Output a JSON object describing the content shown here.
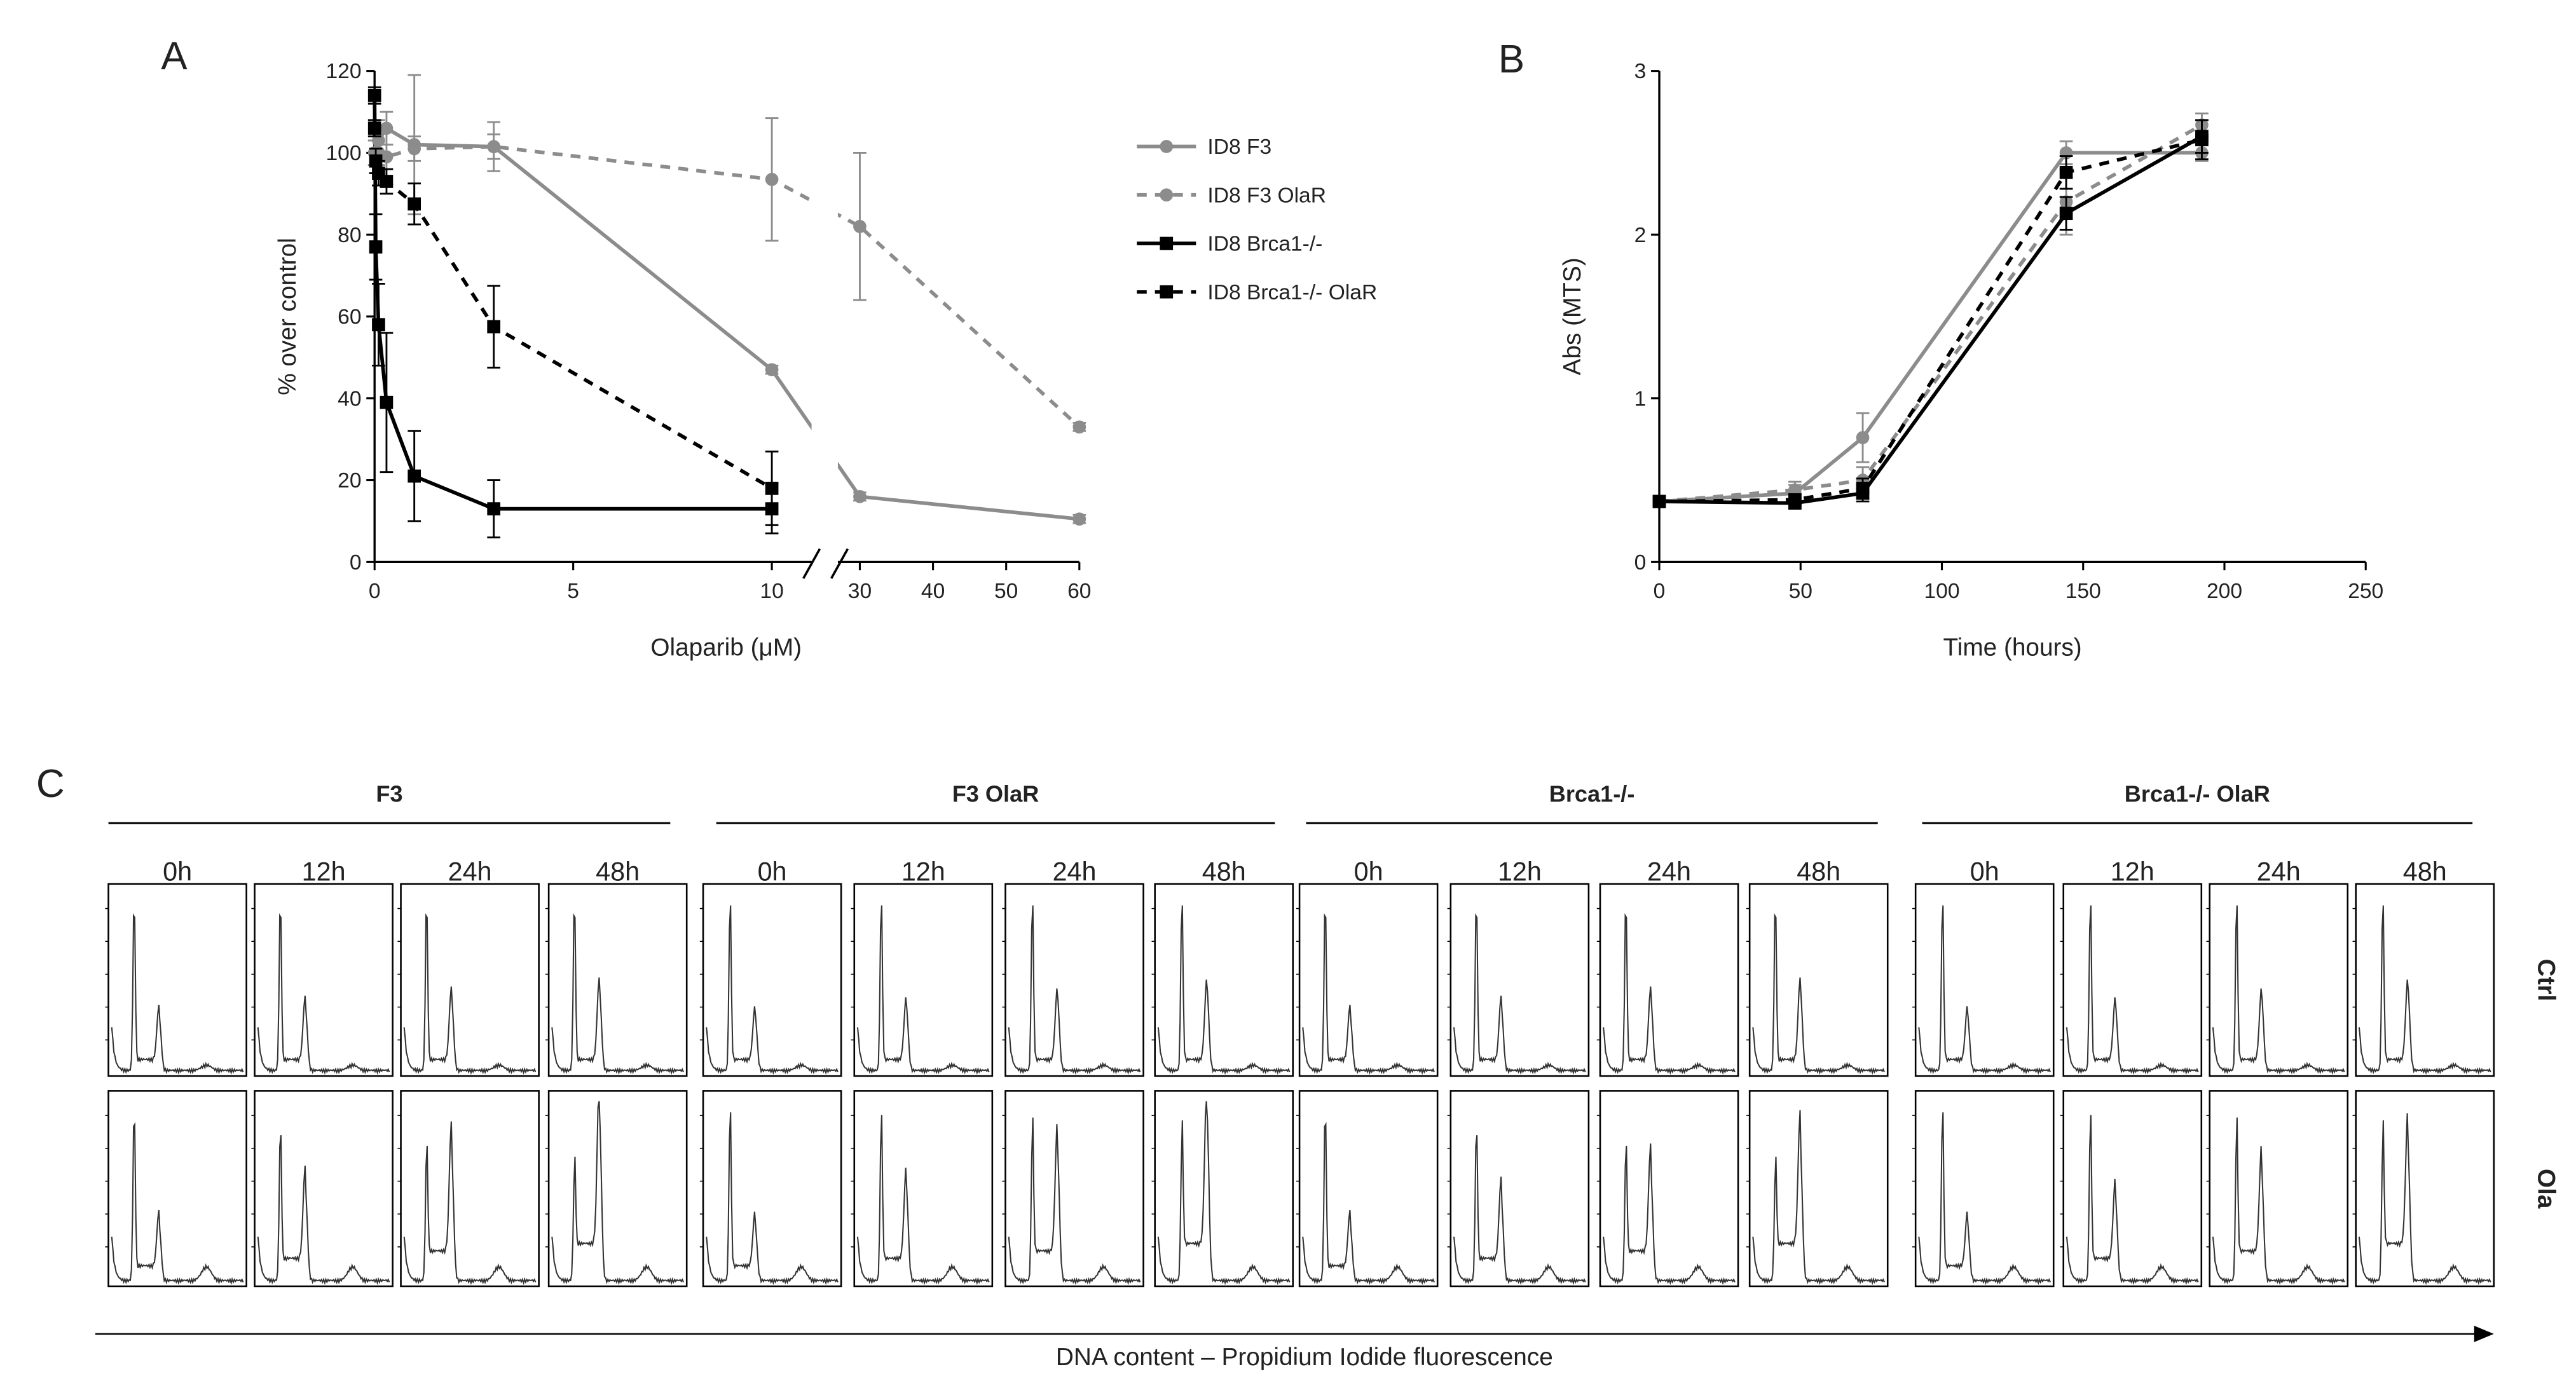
{
  "chart_data": [
    {
      "type": "line",
      "panel_label": "A",
      "xlabel": "Olaparib (μM)",
      "ylabel": "% over control",
      "xlim_segments": [
        [
          0,
          11
        ],
        [
          27,
          60
        ]
      ],
      "xticks": [
        0,
        5,
        10,
        30,
        40,
        50,
        60
      ],
      "ylim": [
        0,
        120
      ],
      "yticks": [
        0,
        20,
        40,
        60,
        80,
        100,
        120
      ],
      "axis_break": true,
      "legend": "right",
      "series": [
        {
          "name": "ID8 F3",
          "color": "#8c8c8c",
          "marker": "circle",
          "dashed": false,
          "x": [
            0,
            0.1,
            0.3,
            1,
            3,
            10,
            30,
            60
          ],
          "values": [
            100,
            103,
            106,
            102,
            101.5,
            47,
            16,
            10.5
          ],
          "errors": [
            3,
            5,
            4,
            17,
            6,
            1,
            1,
            1
          ]
        },
        {
          "name": "ID8 F3 OlaR",
          "color": "#8c8c8c",
          "marker": "circle",
          "dashed": true,
          "x": [
            0,
            0.1,
            0.3,
            1,
            3,
            10,
            30,
            60
          ],
          "values": [
            100,
            100,
            99,
            101,
            101.5,
            93.5,
            82,
            33
          ],
          "errors": [
            3,
            3,
            3,
            3,
            3,
            15,
            18,
            1
          ]
        },
        {
          "name": "ID8 Brca1-/-",
          "color": "#000000",
          "marker": "square",
          "dashed": false,
          "x": [
            0,
            0.03,
            0.1,
            0.3,
            1,
            3,
            10
          ],
          "values": [
            114,
            77,
            58,
            39,
            21,
            13,
            13
          ],
          "errors": [
            2,
            8,
            10,
            17,
            11,
            7,
            6
          ]
        },
        {
          "name": "ID8 Brca1-/- OlaR",
          "color": "#000000",
          "marker": "square",
          "dashed": true,
          "x": [
            0,
            0.03,
            0.1,
            0.3,
            1,
            3,
            10
          ],
          "values": [
            106,
            98,
            95,
            93,
            87.5,
            57.5,
            18
          ],
          "errors": [
            2,
            3,
            3,
            3,
            5,
            10,
            9
          ]
        }
      ]
    },
    {
      "type": "line",
      "panel_label": "B",
      "xlabel": "Time (hours)",
      "ylabel": "Abs (MTS)",
      "xlim": [
        0,
        250
      ],
      "xticks": [
        0,
        50,
        100,
        150,
        200,
        250
      ],
      "ylim": [
        0,
        3
      ],
      "yticks": [
        0,
        1,
        2,
        3
      ],
      "series": [
        {
          "color": "#8c8c8c",
          "marker": "circle",
          "dashed": false,
          "x": [
            0,
            48,
            72,
            144,
            192
          ],
          "values": [
            0.37,
            0.42,
            0.76,
            2.5,
            2.5
          ],
          "errors": [
            0.02,
            0.05,
            0.15,
            0.07,
            0.05
          ]
        },
        {
          "color": "#8c8c8c",
          "marker": "circle",
          "dashed": true,
          "x": [
            0,
            48,
            72,
            144,
            192
          ],
          "values": [
            0.37,
            0.44,
            0.5,
            2.2,
            2.67
          ],
          "errors": [
            0.02,
            0.05,
            0.08,
            0.2,
            0.07
          ]
        },
        {
          "color": "#000000",
          "marker": "square",
          "dashed": false,
          "x": [
            0,
            48,
            72,
            144,
            192
          ],
          "values": [
            0.37,
            0.36,
            0.42,
            2.13,
            2.6
          ],
          "errors": [
            0.02,
            0.03,
            0.05,
            0.1,
            0.1
          ]
        },
        {
          "color": "#000000",
          "marker": "square",
          "dashed": true,
          "x": [
            0,
            48,
            72,
            144,
            192
          ],
          "values": [
            0.37,
            0.38,
            0.45,
            2.38,
            2.58
          ],
          "errors": [
            0.02,
            0.03,
            0.06,
            0.1,
            0.12
          ]
        }
      ]
    }
  ],
  "panel_c": {
    "label": "C",
    "groups": [
      "F3",
      "F3 OlaR",
      "Brca1-/-",
      "Brca1-/- OlaR"
    ],
    "times": [
      "0h",
      "12h",
      "24h",
      "48h"
    ],
    "rows": [
      "Ctrl",
      "Ola"
    ],
    "xlabel": "DNA content – Propidium Iodide fluorescence"
  }
}
